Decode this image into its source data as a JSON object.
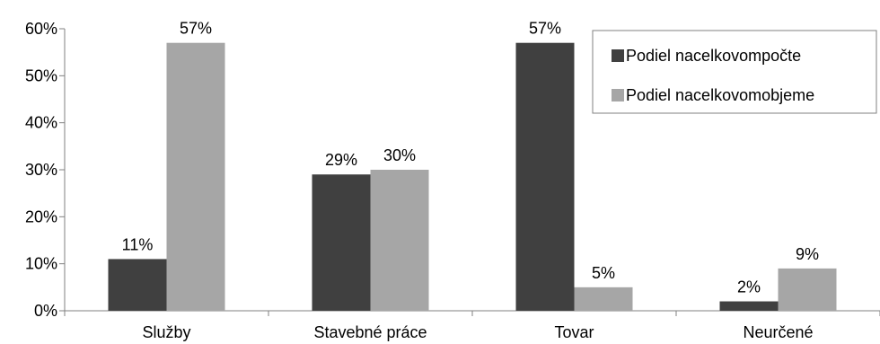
{
  "chart_data": {
    "type": "bar",
    "categories": [
      "Služby",
      "Stavebné práce",
      "Tovar",
      "Neurčené"
    ],
    "series": [
      {
        "name": "Podiel nacelkovompočte",
        "values": [
          11,
          29,
          57,
          2
        ],
        "labels": [
          "11%",
          "29%",
          "57%",
          "2%"
        ],
        "color": "#404040"
      },
      {
        "name": "Podiel nacelkovomobjeme",
        "values": [
          57,
          30,
          5,
          9
        ],
        "labels": [
          "57%",
          "30%",
          "5%",
          "9%"
        ],
        "color": "#a6a6a6"
      }
    ],
    "y_ticks": [
      "0%",
      "10%",
      "20%",
      "30%",
      "40%",
      "50%",
      "60%"
    ],
    "ylim": [
      0,
      60
    ],
    "grid": false,
    "legend_position": "top-right",
    "title": "",
    "xlabel": "",
    "ylabel": ""
  }
}
